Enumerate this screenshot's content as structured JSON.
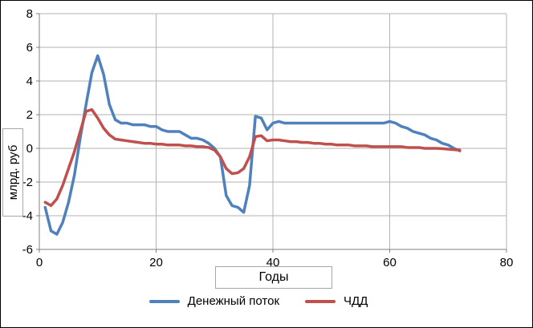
{
  "chart_data": {
    "type": "line",
    "title": "",
    "xlabel": "Годы",
    "ylabel": "млрд. руб",
    "xlim": [
      0,
      80
    ],
    "ylim": [
      -6,
      8
    ],
    "xticks": [
      0,
      20,
      40,
      60,
      80
    ],
    "yticks": [
      8,
      6,
      4,
      2,
      0,
      -2,
      -4,
      -6
    ],
    "grid": true,
    "grid_color": "#b3b3b3",
    "axis_color": "#808080",
    "legend_position": "bottom",
    "x": [
      1,
      2,
      3,
      4,
      5,
      6,
      7,
      8,
      9,
      10,
      11,
      12,
      13,
      14,
      15,
      16,
      17,
      18,
      19,
      20,
      21,
      22,
      23,
      24,
      25,
      26,
      27,
      28,
      29,
      30,
      31,
      32,
      33,
      34,
      35,
      36,
      37,
      38,
      39,
      40,
      41,
      42,
      43,
      44,
      45,
      46,
      47,
      48,
      49,
      50,
      51,
      52,
      53,
      54,
      55,
      56,
      57,
      58,
      59,
      60,
      61,
      62,
      63,
      64,
      65,
      66,
      67,
      68,
      69,
      70,
      71,
      72
    ],
    "series": [
      {
        "name": "Денежный поток",
        "color": "#4F81BD",
        "values": [
          -3.5,
          -4.9,
          -5.1,
          -4.4,
          -3.2,
          -1.6,
          0.6,
          2.6,
          4.5,
          5.5,
          4.4,
          2.6,
          1.7,
          1.5,
          1.5,
          1.4,
          1.4,
          1.4,
          1.3,
          1.3,
          1.1,
          1.0,
          1.0,
          1.0,
          0.8,
          0.6,
          0.6,
          0.5,
          0.3,
          0.0,
          -0.5,
          -2.8,
          -3.4,
          -3.5,
          -3.8,
          -2.2,
          1.9,
          1.8,
          1.1,
          1.5,
          1.6,
          1.5,
          1.5,
          1.5,
          1.5,
          1.5,
          1.5,
          1.5,
          1.5,
          1.5,
          1.5,
          1.5,
          1.5,
          1.5,
          1.5,
          1.5,
          1.5,
          1.5,
          1.5,
          1.6,
          1.5,
          1.3,
          1.2,
          1.0,
          0.9,
          0.8,
          0.6,
          0.5,
          0.3,
          0.2,
          0.0,
          -0.15
        ]
      },
      {
        "name": "ЧДД",
        "color": "#C0504D",
        "values": [
          -3.2,
          -3.4,
          -3.0,
          -2.2,
          -1.2,
          -0.2,
          1.0,
          2.2,
          2.3,
          1.8,
          1.2,
          0.8,
          0.55,
          0.5,
          0.45,
          0.4,
          0.35,
          0.3,
          0.3,
          0.25,
          0.25,
          0.2,
          0.2,
          0.2,
          0.15,
          0.15,
          0.1,
          0.1,
          0.05,
          -0.1,
          -0.5,
          -1.2,
          -1.5,
          -1.45,
          -1.2,
          -0.5,
          0.7,
          0.75,
          0.45,
          0.5,
          0.5,
          0.45,
          0.4,
          0.4,
          0.35,
          0.35,
          0.3,
          0.3,
          0.25,
          0.25,
          0.2,
          0.2,
          0.2,
          0.15,
          0.15,
          0.15,
          0.1,
          0.1,
          0.1,
          0.1,
          0.1,
          0.1,
          0.05,
          0.05,
          0.05,
          0.0,
          0.0,
          0.0,
          -0.02,
          -0.05,
          -0.08,
          -0.1
        ]
      }
    ]
  }
}
